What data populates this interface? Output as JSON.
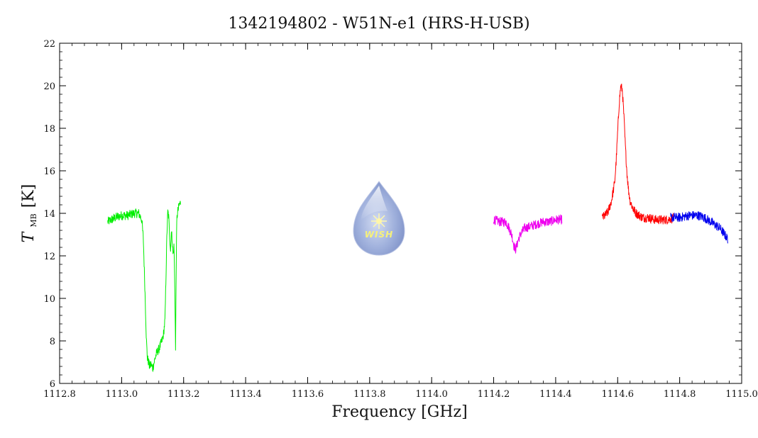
{
  "chart_data": {
    "type": "line",
    "title": "1342194802 - W51N-e1 (HRS-H-USB)",
    "xlabel": "Frequency [GHz]",
    "ylabel_main": "T",
    "ylabel_sub": "MB",
    "ylabel_unit": "[K]",
    "xlim": [
      1112.8,
      1115.0
    ],
    "ylim": [
      6,
      22
    ],
    "xticks": [
      "1112.8",
      "1113.0",
      "1113.2",
      "1113.4",
      "1113.6",
      "1113.8",
      "1114.0",
      "1114.2",
      "1114.4",
      "1114.6",
      "1114.8",
      "1115.0"
    ],
    "yticks": [
      "6",
      "8",
      "10",
      "12",
      "14",
      "16",
      "18",
      "20",
      "22"
    ],
    "grid": false,
    "series": [
      {
        "color": "#00ee00",
        "x": [
          1112.955,
          1112.98,
          1113.0,
          1113.02,
          1113.04,
          1113.055,
          1113.065,
          1113.07,
          1113.075,
          1113.08,
          1113.083,
          1113.087,
          1113.09,
          1113.095,
          1113.1,
          1113.105,
          1113.11,
          1113.115,
          1113.12,
          1113.125,
          1113.13,
          1113.135,
          1113.14,
          1113.143,
          1113.146,
          1113.149,
          1113.152,
          1113.155,
          1113.158,
          1113.16,
          1113.163,
          1113.166,
          1113.169,
          1113.172,
          1113.174,
          1113.176,
          1113.178,
          1113.18,
          1113.183,
          1113.186,
          1113.19
        ],
        "y": [
          13.6,
          13.8,
          13.9,
          13.9,
          14.0,
          14.0,
          13.7,
          12.8,
          10.5,
          8.0,
          7.2,
          7.0,
          6.8,
          6.9,
          6.7,
          7.0,
          7.3,
          7.5,
          7.6,
          7.8,
          8.0,
          8.3,
          9.0,
          11.0,
          13.0,
          14.1,
          13.8,
          12.9,
          12.2,
          13.2,
          12.8,
          12.0,
          12.5,
          10.0,
          7.5,
          11.5,
          13.7,
          14.0,
          14.2,
          14.4,
          14.5
        ]
      },
      {
        "color": "#ee00ee",
        "x": [
          1114.2,
          1114.22,
          1114.24,
          1114.25,
          1114.26,
          1114.265,
          1114.27,
          1114.275,
          1114.28,
          1114.29,
          1114.3,
          1114.32,
          1114.34,
          1114.36,
          1114.38,
          1114.4,
          1114.42
        ],
        "y": [
          13.7,
          13.6,
          13.6,
          13.3,
          12.9,
          12.5,
          12.3,
          12.5,
          12.8,
          13.1,
          13.3,
          13.4,
          13.5,
          13.6,
          13.6,
          13.7,
          13.7
        ]
      },
      {
        "color": "#ff0000",
        "x": [
          1114.55,
          1114.56,
          1114.57,
          1114.58,
          1114.59,
          1114.595,
          1114.6,
          1114.605,
          1114.61,
          1114.615,
          1114.62,
          1114.625,
          1114.63,
          1114.635,
          1114.64,
          1114.65,
          1114.66,
          1114.67,
          1114.68,
          1114.7,
          1114.72,
          1114.74,
          1114.76,
          1114.78
        ],
        "y": [
          13.8,
          13.9,
          14.1,
          14.6,
          15.4,
          16.4,
          17.8,
          19.2,
          20.0,
          19.8,
          18.6,
          17.1,
          15.9,
          15.1,
          14.6,
          14.2,
          14.0,
          13.9,
          13.8,
          13.8,
          13.7,
          13.7,
          13.7,
          13.8
        ]
      },
      {
        "color": "#0000ee",
        "x": [
          1114.77,
          1114.8,
          1114.83,
          1114.86,
          1114.88,
          1114.9,
          1114.92,
          1114.93,
          1114.94,
          1114.95,
          1114.955
        ],
        "y": [
          13.8,
          13.8,
          13.9,
          13.9,
          13.8,
          13.6,
          13.4,
          13.3,
          13.1,
          12.9,
          12.8
        ]
      }
    ]
  },
  "logo": {
    "text": "WISH"
  }
}
